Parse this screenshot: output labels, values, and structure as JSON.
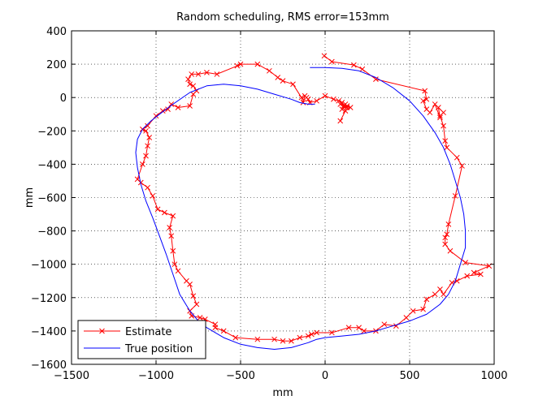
{
  "chart_data": {
    "type": "line",
    "title": "Random scheduling, RMS error=153mm",
    "xlabel": "mm",
    "ylabel": "mm",
    "xlim": [
      -1500,
      1000
    ],
    "ylim": [
      -1600,
      400
    ],
    "xticks": [
      -1500,
      -1000,
      -500,
      0,
      500,
      1000
    ],
    "yticks": [
      -1600,
      -1400,
      -1200,
      -1000,
      -800,
      -600,
      -400,
      -200,
      0,
      200,
      400
    ],
    "xtick_labels": [
      "−1500",
      "−1000",
      "−500",
      "0",
      "500",
      "1000"
    ],
    "ytick_labels": [
      "−1600",
      "−1400",
      "−1200",
      "−1000",
      "−800",
      "−600",
      "−400",
      "−200",
      "0",
      "200",
      "400"
    ],
    "grid": true,
    "legend_position": "bottom-left",
    "series": [
      {
        "name": "Estimate",
        "color": "#ff0000",
        "marker": "x",
        "points": [
          [
            -5,
            250
          ],
          [
            40,
            215
          ],
          [
            170,
            195
          ],
          [
            220,
            170
          ],
          [
            300,
            110
          ],
          [
            590,
            40
          ],
          [
            600,
            -10
          ],
          [
            580,
            -20
          ],
          [
            600,
            -70
          ],
          [
            620,
            -90
          ],
          [
            650,
            -40
          ],
          [
            680,
            -120
          ],
          [
            670,
            -60
          ],
          [
            700,
            -90
          ],
          [
            680,
            -110
          ],
          [
            700,
            -170
          ],
          [
            710,
            -260
          ],
          [
            720,
            -300
          ],
          [
            780,
            -360
          ],
          [
            810,
            -410
          ],
          [
            770,
            -590
          ],
          [
            730,
            -760
          ],
          [
            720,
            -820
          ],
          [
            710,
            -840
          ],
          [
            710,
            -880
          ],
          [
            740,
            -920
          ],
          [
            830,
            -990
          ],
          [
            970,
            -1010
          ],
          [
            880,
            -1050
          ],
          [
            920,
            -1060
          ],
          [
            840,
            -1070
          ],
          [
            780,
            -1100
          ],
          [
            750,
            -1110
          ],
          [
            700,
            -1180
          ],
          [
            680,
            -1150
          ],
          [
            650,
            -1180
          ],
          [
            600,
            -1210
          ],
          [
            580,
            -1270
          ],
          [
            520,
            -1280
          ],
          [
            480,
            -1320
          ],
          [
            420,
            -1370
          ],
          [
            350,
            -1360
          ],
          [
            300,
            -1400
          ],
          [
            230,
            -1400
          ],
          [
            200,
            -1380
          ],
          [
            140,
            -1380
          ],
          [
            40,
            -1410
          ],
          [
            -50,
            -1410
          ],
          [
            -80,
            -1420
          ],
          [
            -100,
            -1430
          ],
          [
            -150,
            -1440
          ],
          [
            -200,
            -1460
          ],
          [
            -250,
            -1460
          ],
          [
            -300,
            -1450
          ],
          [
            -400,
            -1450
          ],
          [
            -530,
            -1440
          ],
          [
            -600,
            -1400
          ],
          [
            -650,
            -1380
          ],
          [
            -650,
            -1360
          ],
          [
            -710,
            -1330
          ],
          [
            -740,
            -1320
          ],
          [
            -790,
            -1310
          ],
          [
            -800,
            -1280
          ],
          [
            -760,
            -1240
          ],
          [
            -780,
            -1190
          ],
          [
            -800,
            -1120
          ],
          [
            -820,
            -1100
          ],
          [
            -870,
            -1040
          ],
          [
            -890,
            -1000
          ],
          [
            -900,
            -920
          ],
          [
            -910,
            -830
          ],
          [
            -920,
            -780
          ],
          [
            -900,
            -710
          ],
          [
            -950,
            -690
          ],
          [
            -990,
            -670
          ],
          [
            -1020,
            -590
          ],
          [
            -1050,
            -540
          ],
          [
            -1090,
            -510
          ],
          [
            -1110,
            -490
          ],
          [
            -1080,
            -400
          ],
          [
            -1060,
            -350
          ],
          [
            -1050,
            -290
          ],
          [
            -1040,
            -240
          ],
          [
            -1060,
            -200
          ],
          [
            -1080,
            -190
          ],
          [
            -1050,
            -170
          ],
          [
            -1000,
            -110
          ],
          [
            -960,
            -80
          ],
          [
            -930,
            -70
          ],
          [
            -910,
            -40
          ],
          [
            -870,
            -60
          ],
          [
            -800,
            -50
          ],
          [
            -780,
            20
          ],
          [
            -760,
            40
          ],
          [
            -780,
            70
          ],
          [
            -800,
            80
          ],
          [
            -810,
            110
          ],
          [
            -790,
            140
          ],
          [
            -750,
            140
          ],
          [
            -700,
            150
          ],
          [
            -640,
            140
          ],
          [
            -520,
            190
          ],
          [
            -500,
            200
          ],
          [
            -400,
            200
          ],
          [
            -330,
            160
          ],
          [
            -280,
            120
          ],
          [
            -250,
            100
          ],
          [
            -190,
            80
          ],
          [
            -140,
            0
          ],
          [
            -130,
            -30
          ],
          [
            -120,
            10
          ],
          [
            -110,
            0
          ],
          [
            -100,
            -10
          ],
          [
            -90,
            -30
          ],
          [
            -50,
            -20
          ],
          [
            0,
            10
          ],
          [
            50,
            -10
          ],
          [
            80,
            -20
          ],
          [
            100,
            -30
          ],
          [
            110,
            -50
          ],
          [
            90,
            -40
          ],
          [
            130,
            -60
          ],
          [
            120,
            -40
          ],
          [
            100,
            -70
          ],
          [
            130,
            -50
          ],
          [
            150,
            -60
          ],
          [
            120,
            -80
          ],
          [
            90,
            -140
          ]
        ]
      },
      {
        "name": "True position",
        "color": "#0000ff",
        "marker": "none",
        "points": [
          [
            -90,
            180
          ],
          [
            0,
            180
          ],
          [
            100,
            175
          ],
          [
            200,
            160
          ],
          [
            300,
            120
          ],
          [
            400,
            60
          ],
          [
            500,
            -20
          ],
          [
            580,
            -110
          ],
          [
            650,
            -210
          ],
          [
            700,
            -300
          ],
          [
            740,
            -400
          ],
          [
            770,
            -500
          ],
          [
            800,
            -600
          ],
          [
            820,
            -700
          ],
          [
            830,
            -800
          ],
          [
            830,
            -900
          ],
          [
            800,
            -1000
          ],
          [
            770,
            -1100
          ],
          [
            730,
            -1180
          ],
          [
            680,
            -1240
          ],
          [
            600,
            -1300
          ],
          [
            500,
            -1340
          ],
          [
            400,
            -1370
          ],
          [
            300,
            -1400
          ],
          [
            200,
            -1420
          ],
          [
            100,
            -1430
          ],
          [
            0,
            -1440
          ],
          [
            -50,
            -1450
          ],
          [
            -100,
            -1470
          ],
          [
            -200,
            -1500
          ],
          [
            -300,
            -1510
          ],
          [
            -400,
            -1500
          ],
          [
            -500,
            -1480
          ],
          [
            -600,
            -1440
          ],
          [
            -700,
            -1380
          ],
          [
            -750,
            -1340
          ],
          [
            -800,
            -1280
          ],
          [
            -860,
            -1180
          ],
          [
            -900,
            -1060
          ],
          [
            -940,
            -940
          ],
          [
            -980,
            -830
          ],
          [
            -1020,
            -720
          ],
          [
            -1060,
            -620
          ],
          [
            -1090,
            -520
          ],
          [
            -1110,
            -420
          ],
          [
            -1120,
            -330
          ],
          [
            -1110,
            -250
          ],
          [
            -1080,
            -190
          ],
          [
            -1030,
            -140
          ],
          [
            -980,
            -100
          ],
          [
            -900,
            -40
          ],
          [
            -800,
            30
          ],
          [
            -700,
            70
          ],
          [
            -600,
            80
          ],
          [
            -500,
            70
          ],
          [
            -400,
            50
          ],
          [
            -300,
            20
          ],
          [
            -200,
            -10
          ],
          [
            -150,
            -30
          ],
          [
            -100,
            -40
          ],
          [
            -60,
            -40
          ]
        ]
      }
    ]
  }
}
